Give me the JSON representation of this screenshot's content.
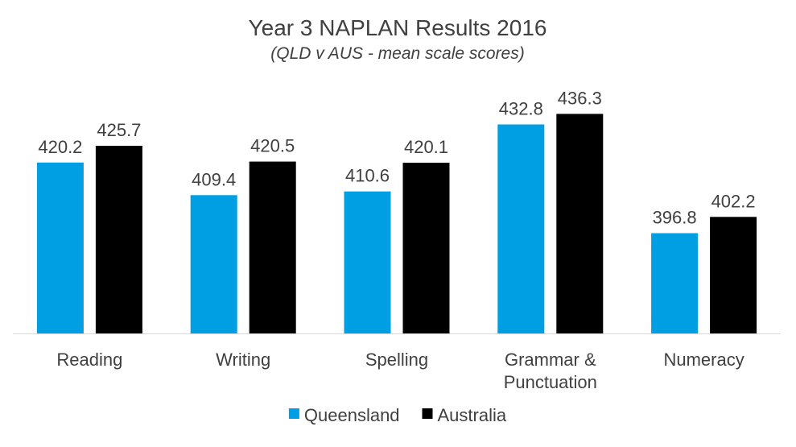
{
  "chart_data": {
    "type": "bar",
    "title": "Year 3 NAPLAN Results 2016",
    "subtitle": "(QLD v AUS - mean scale scores)",
    "categories": [
      [
        "Reading"
      ],
      [
        "Writing"
      ],
      [
        "Spelling"
      ],
      [
        "Grammar &",
        "Punctuation"
      ],
      [
        "Numeracy"
      ]
    ],
    "series": [
      {
        "name": "Queensland",
        "color": "#009FE3",
        "values": [
          420.2,
          409.4,
          410.6,
          432.8,
          396.8
        ]
      },
      {
        "name": "Australia",
        "color": "#000000",
        "values": [
          425.7,
          420.5,
          420.1,
          436.3,
          402.2
        ]
      }
    ],
    "ylim": [
      363.6,
      450
    ],
    "legend_position": "bottom",
    "grid": false
  }
}
